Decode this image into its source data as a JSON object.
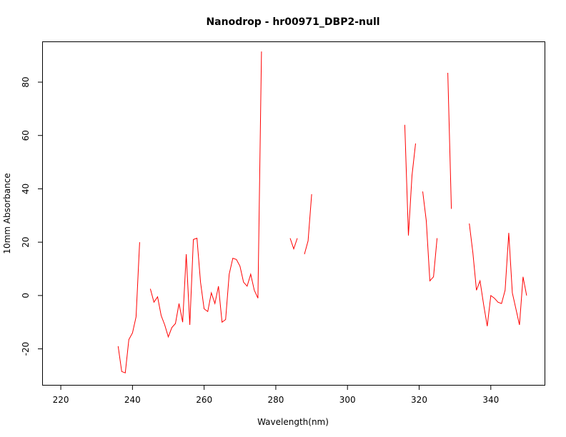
{
  "chart_data": {
    "type": "line",
    "title": "Nanodrop - hr00971_DBP2-null",
    "xlabel": "Wavelength(nm)",
    "ylabel": "10mm Absorbance",
    "xlim": [
      215,
      355
    ],
    "ylim": [
      -33.5,
      95
    ],
    "xticks": [
      220,
      240,
      260,
      280,
      300,
      320,
      340
    ],
    "yticks": [
      -20,
      0,
      20,
      40,
      60,
      80
    ],
    "grid": false,
    "line_color": "#ff0000",
    "series": [
      {
        "segments": [
          [
            [
              236,
              -19
            ],
            [
              237,
              -28.5
            ],
            [
              238,
              -29
            ],
            [
              239,
              -16.5
            ],
            [
              240,
              -14
            ],
            [
              241,
              -8
            ],
            [
              242,
              20
            ]
          ],
          [
            [
              245,
              2.5
            ],
            [
              246,
              -2.5
            ],
            [
              247,
              -0.5
            ],
            [
              248,
              -7.5
            ],
            [
              249,
              -11
            ],
            [
              250,
              -15.5
            ],
            [
              251,
              -12
            ],
            [
              252,
              -10.5
            ],
            [
              253,
              -3
            ],
            [
              254,
              -10
            ],
            [
              255,
              15.5
            ],
            [
              256,
              -11
            ],
            [
              257,
              21
            ],
            [
              258,
              21.5
            ],
            [
              259,
              5
            ],
            [
              260,
              -5
            ],
            [
              261,
              -6
            ],
            [
              262,
              1
            ],
            [
              263,
              -3
            ],
            [
              264,
              3.5
            ],
            [
              265,
              -10
            ],
            [
              266,
              -9
            ],
            [
              267,
              8
            ],
            [
              268,
              14
            ],
            [
              269,
              13.5
            ],
            [
              270,
              11
            ],
            [
              271,
              5
            ],
            [
              272,
              3.5
            ],
            [
              273,
              8
            ],
            [
              274,
              2
            ],
            [
              275,
              -1
            ],
            [
              276,
              91.5
            ]
          ],
          [
            [
              284,
              21.5
            ],
            [
              285,
              17.5
            ],
            [
              286,
              21.5
            ]
          ],
          [
            [
              288,
              15.5
            ],
            [
              289,
              20.5
            ],
            [
              290,
              38
            ]
          ],
          [
            [
              316,
              64
            ],
            [
              317,
              22.5
            ],
            [
              318,
              45
            ],
            [
              319,
              57
            ]
          ],
          [
            [
              321,
              39
            ],
            [
              322,
              28
            ],
            [
              323,
              5.5
            ],
            [
              324,
              7
            ],
            [
              325,
              21.5
            ]
          ],
          [
            [
              328,
              83.5
            ],
            [
              329,
              32.5
            ]
          ],
          [
            [
              334,
              27
            ],
            [
              335,
              16
            ],
            [
              336,
              2
            ],
            [
              337,
              5.5
            ],
            [
              338,
              -3.5
            ],
            [
              339,
              -11.5
            ],
            [
              340,
              0
            ],
            [
              341,
              -1
            ],
            [
              342,
              -2.5
            ],
            [
              343,
              -3
            ],
            [
              344,
              2
            ],
            [
              345,
              23.5
            ],
            [
              346,
              1
            ],
            [
              347,
              -5
            ],
            [
              348,
              -11
            ],
            [
              349,
              7
            ],
            [
              350,
              0
            ]
          ]
        ]
      }
    ]
  }
}
